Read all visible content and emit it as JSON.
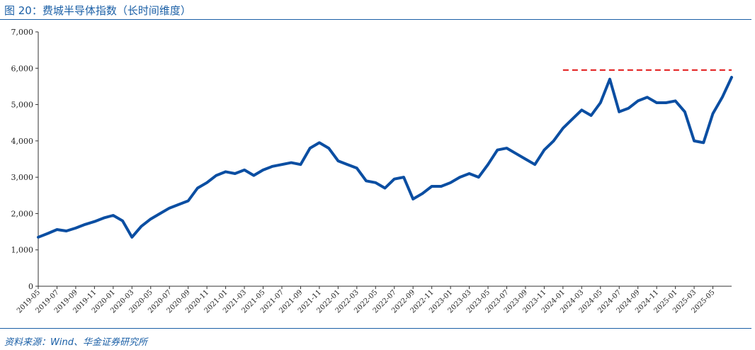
{
  "header": {
    "title": "图 20：费城半导体指数（长时间维度）"
  },
  "footer": {
    "source": "资料来源：Wind、华金证券研究所"
  },
  "colors": {
    "line": "#0b4ea2",
    "reference": "#e31b1b",
    "header": "#1a5fa6"
  },
  "chart_data": {
    "type": "line",
    "title": "",
    "xlabel": "",
    "ylabel": "",
    "ylim": [
      0,
      7000
    ],
    "yticks": [
      0,
      1000,
      2000,
      3000,
      4000,
      5000,
      6000,
      7000
    ],
    "ytick_labels": [
      "0",
      "1,000",
      "2,000",
      "3,000",
      "4,000",
      "5,000",
      "6,000",
      "7,000"
    ],
    "xtick_labels": [
      "2019-05",
      "2019-07",
      "2019-09",
      "2019-11",
      "2020-01",
      "2020-03",
      "2020-05",
      "2020-07",
      "2020-09",
      "2020-11",
      "2021-01",
      "2021-03",
      "2021-05",
      "2021-07",
      "2021-09",
      "2021-11",
      "2022-01",
      "2022-03",
      "2022-05",
      "2022-07",
      "2022-09",
      "2022-11",
      "2023-01",
      "2023-03",
      "2023-05",
      "2023-07",
      "2023-09",
      "2023-11",
      "2024-01",
      "2024-03",
      "2024-05",
      "2024-07",
      "2024-09",
      "2024-11",
      "2025-01",
      "2025-03",
      "2025-05"
    ],
    "grid": false,
    "legend": "none",
    "reference_line": {
      "y": 5950,
      "x_start": "2024-01",
      "x_end": "2025-07",
      "style": "dashed"
    },
    "series": [
      {
        "x": [
          "2019-05",
          "2019-06",
          "2019-07",
          "2019-08",
          "2019-09",
          "2019-10",
          "2019-11",
          "2019-12",
          "2020-01",
          "2020-02",
          "2020-03",
          "2020-04",
          "2020-05",
          "2020-06",
          "2020-07",
          "2020-08",
          "2020-09",
          "2020-10",
          "2020-11",
          "2020-12",
          "2021-01",
          "2021-02",
          "2021-03",
          "2021-04",
          "2021-05",
          "2021-06",
          "2021-07",
          "2021-08",
          "2021-09",
          "2021-10",
          "2021-11",
          "2021-12",
          "2022-01",
          "2022-02",
          "2022-03",
          "2022-04",
          "2022-05",
          "2022-06",
          "2022-07",
          "2022-08",
          "2022-09",
          "2022-10",
          "2022-11",
          "2022-12",
          "2023-01",
          "2023-02",
          "2023-03",
          "2023-04",
          "2023-05",
          "2023-06",
          "2023-07",
          "2023-08",
          "2023-09",
          "2023-10",
          "2023-11",
          "2023-12",
          "2024-01",
          "2024-02",
          "2024-03",
          "2024-04",
          "2024-05",
          "2024-06",
          "2024-07",
          "2024-08",
          "2024-09",
          "2024-10",
          "2024-11",
          "2024-12",
          "2025-01",
          "2025-02",
          "2025-03",
          "2025-04",
          "2025-05",
          "2025-06",
          "2025-07"
        ],
        "values": [
          1350,
          1450,
          1560,
          1520,
          1600,
          1700,
          1780,
          1880,
          1950,
          1800,
          1350,
          1650,
          1850,
          2000,
          2150,
          2250,
          2350,
          2700,
          2850,
          3050,
          3150,
          3100,
          3200,
          3050,
          3200,
          3300,
          3350,
          3400,
          3350,
          3800,
          3950,
          3800,
          3450,
          3350,
          3250,
          2900,
          2850,
          2700,
          2950,
          3000,
          2400,
          2550,
          2750,
          2750,
          2850,
          3000,
          3100,
          3000,
          3350,
          3750,
          3800,
          3650,
          3500,
          3350,
          3750,
          4000,
          4350,
          4600,
          4850,
          4700,
          5050,
          5700,
          4800,
          4900,
          5100,
          5200,
          5050,
          5050,
          5100,
          4800,
          4000,
          3950,
          4750,
          5200,
          5750
        ]
      }
    ]
  }
}
